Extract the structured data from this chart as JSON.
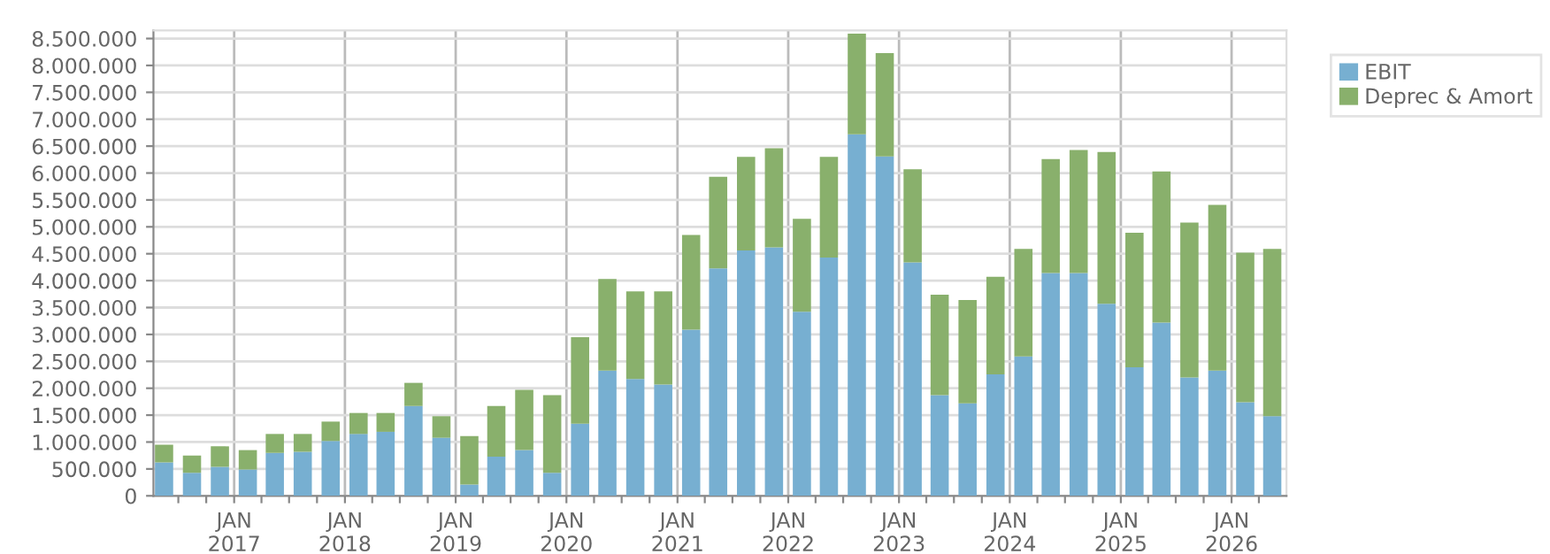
{
  "chart_data": {
    "type": "bar",
    "stacked": true,
    "x": [
      "2016-05-15",
      "2016-08-15",
      "2016-11-15",
      "2017-02-15",
      "2017-05-15",
      "2017-08-15",
      "2017-11-15",
      "2018-02-15",
      "2018-05-15",
      "2018-08-15",
      "2018-11-15",
      "2019-02-15",
      "2019-05-15",
      "2019-08-15",
      "2019-11-15",
      "2020-02-15",
      "2020-05-15",
      "2020-08-15",
      "2020-11-15",
      "2021-02-15",
      "2021-05-15",
      "2021-08-15",
      "2021-11-15",
      "2022-02-15",
      "2022-05-15",
      "2022-08-15",
      "2022-11-15",
      "2023-02-15",
      "2023-05-15",
      "2023-08-15",
      "2023-11-15",
      "2024-02-15",
      "2024-05-15",
      "2024-08-15",
      "2024-11-15",
      "2025-02-15",
      "2025-05-15",
      "2025-08-15",
      "2025-11-15",
      "2026-02-15",
      "2026-05-15"
    ],
    "series": [
      {
        "name": "EBIT",
        "color": "#77afd1",
        "values": [
          620000,
          430000,
          540000,
          490000,
          800000,
          820000,
          1020000,
          1150000,
          1190000,
          1670000,
          1080000,
          210000,
          730000,
          850000,
          430000,
          1340000,
          2330000,
          2170000,
          2070000,
          3090000,
          4230000,
          4560000,
          4620000,
          3420000,
          4430000,
          6720000,
          6310000,
          4340000,
          1870000,
          1720000,
          2260000,
          2590000,
          4140000,
          4140000,
          3570000,
          2390000,
          3220000,
          2200000,
          2330000,
          1740000,
          1480000
        ]
      },
      {
        "name": "Deprec & Amort",
        "color": "#89b06c",
        "values": [
          330000,
          320000,
          380000,
          360000,
          350000,
          330000,
          360000,
          390000,
          350000,
          430000,
          400000,
          900000,
          940000,
          1120000,
          1440000,
          1610000,
          1700000,
          1630000,
          1730000,
          1760000,
          1700000,
          1740000,
          1840000,
          1730000,
          1870000,
          1870000,
          1920000,
          1730000,
          1870000,
          1920000,
          1810000,
          2000000,
          2120000,
          2290000,
          2820000,
          2500000,
          2810000,
          2880000,
          3080000,
          2780000,
          3110000
        ]
      }
    ],
    "xlim": [
      "2016-04-10",
      "2026-07-01"
    ],
    "xticks": [
      {
        "value": "2016-07-01",
        "label": null
      },
      {
        "value": "2016-10-01",
        "label": null
      },
      {
        "value": "2017-01-01",
        "label": "JAN\n2017"
      },
      {
        "value": "2017-04-01",
        "label": null
      },
      {
        "value": "2017-07-01",
        "label": null
      },
      {
        "value": "2017-10-01",
        "label": null
      },
      {
        "value": "2018-01-01",
        "label": "JAN\n2018"
      },
      {
        "value": "2018-04-01",
        "label": null
      },
      {
        "value": "2018-07-01",
        "label": null
      },
      {
        "value": "2018-10-01",
        "label": null
      },
      {
        "value": "2019-01-01",
        "label": "JAN\n2019"
      },
      {
        "value": "2019-04-01",
        "label": null
      },
      {
        "value": "2019-07-01",
        "label": null
      },
      {
        "value": "2019-10-01",
        "label": null
      },
      {
        "value": "2020-01-01",
        "label": "JAN\n2020"
      },
      {
        "value": "2020-04-01",
        "label": null
      },
      {
        "value": "2020-07-01",
        "label": null
      },
      {
        "value": "2020-10-01",
        "label": null
      },
      {
        "value": "2021-01-01",
        "label": "JAN\n2021"
      },
      {
        "value": "2021-04-01",
        "label": null
      },
      {
        "value": "2021-07-01",
        "label": null
      },
      {
        "value": "2021-10-01",
        "label": null
      },
      {
        "value": "2022-01-01",
        "label": "JAN\n2022"
      },
      {
        "value": "2022-04-01",
        "label": null
      },
      {
        "value": "2022-07-01",
        "label": null
      },
      {
        "value": "2022-10-01",
        "label": null
      },
      {
        "value": "2023-01-01",
        "label": "JAN\n2023"
      },
      {
        "value": "2023-04-01",
        "label": null
      },
      {
        "value": "2023-07-01",
        "label": null
      },
      {
        "value": "2023-10-01",
        "label": null
      },
      {
        "value": "2024-01-01",
        "label": "JAN\n2024"
      },
      {
        "value": "2024-04-01",
        "label": null
      },
      {
        "value": "2024-07-01",
        "label": null
      },
      {
        "value": "2024-10-01",
        "label": null
      },
      {
        "value": "2025-01-01",
        "label": "JAN\n2025"
      },
      {
        "value": "2025-04-01",
        "label": null
      },
      {
        "value": "2025-07-01",
        "label": null
      },
      {
        "value": "2025-10-01",
        "label": null
      },
      {
        "value": "2026-01-01",
        "label": "JAN\n2026"
      },
      {
        "value": "2026-04-01",
        "label": null
      }
    ],
    "ylim": [
      0,
      8650000
    ],
    "yticks": [
      0,
      {
        "value": 500000,
        "label": "500.000"
      },
      {
        "value": 1000000,
        "label": "1.000.000"
      },
      {
        "value": 1500000,
        "label": "1.500.000"
      },
      {
        "value": 2000000,
        "label": "2.000.000"
      },
      {
        "value": 2500000,
        "label": "2.500.000"
      },
      {
        "value": 3000000,
        "label": "3.000.000"
      },
      {
        "value": 3500000,
        "label": "3.500.000"
      },
      {
        "value": 4000000,
        "label": "4.000.000"
      },
      {
        "value": 4500000,
        "label": "4.500.000"
      },
      {
        "value": 5000000,
        "label": "5.000.000"
      },
      {
        "value": 5500000,
        "label": "5.500.000"
      },
      {
        "value": 6000000,
        "label": "6.000.000"
      },
      {
        "value": 6500000,
        "label": "6.500.000"
      },
      {
        "value": 7000000,
        "label": "7.000.000"
      },
      {
        "value": 7500000,
        "label": "7.500.000"
      },
      {
        "value": 8000000,
        "label": "8.000.000"
      },
      {
        "value": 8500000,
        "label": "8.500.000"
      }
    ],
    "grid": true,
    "legend": "top right"
  }
}
